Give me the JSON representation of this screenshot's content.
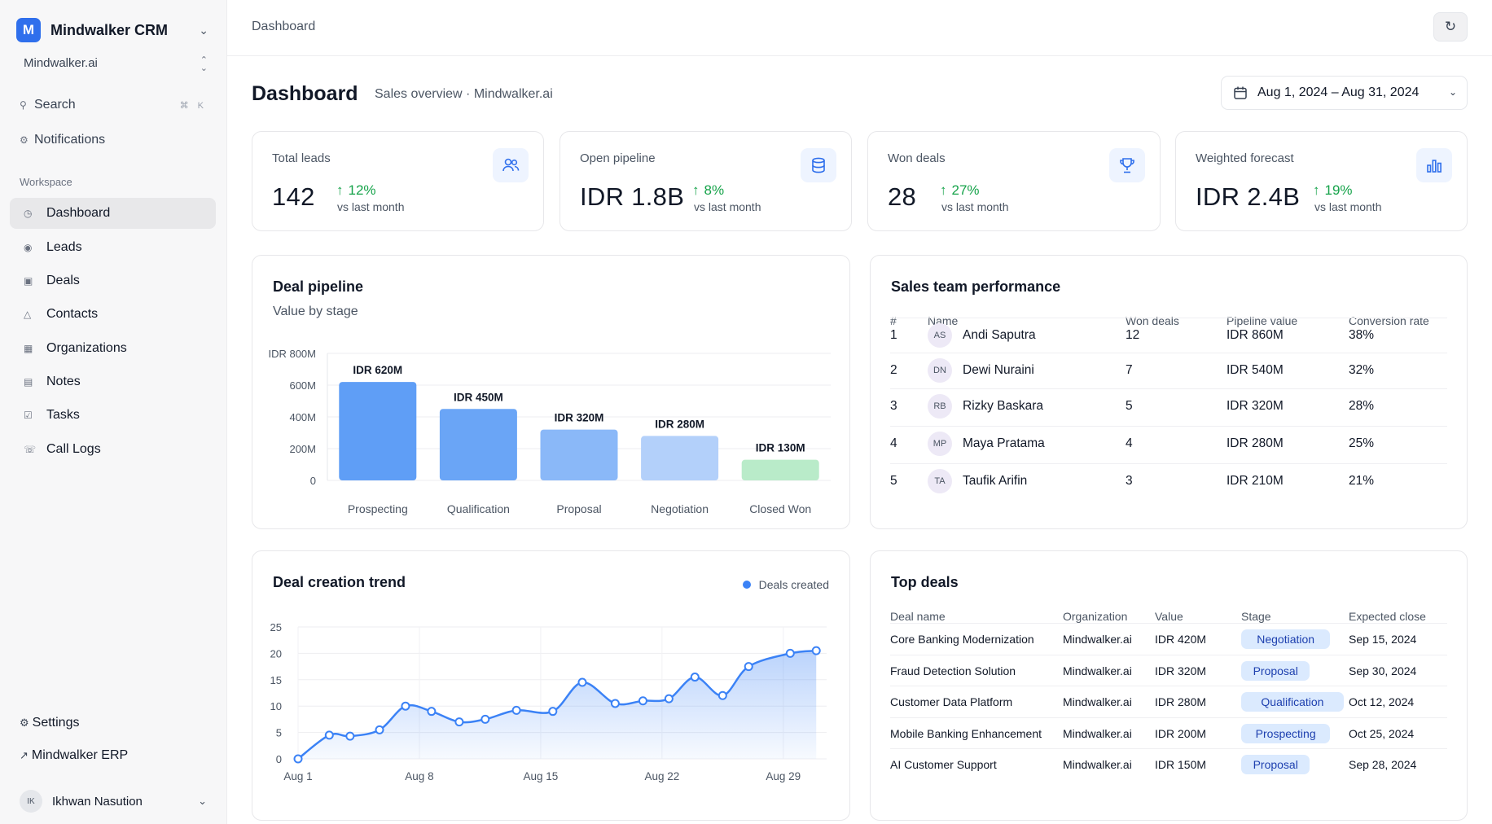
{
  "app": {
    "name": "Mindwalker CRM",
    "logo_letter": "M",
    "org": "Mindwalker.ai"
  },
  "sidebar": {
    "search_label": "Search",
    "search_shortcut": "⌘ K",
    "notifications_label": "Notifications",
    "section_label": "Workspace",
    "items": [
      {
        "label": "Dashboard",
        "icon": "clock-icon",
        "active": true
      },
      {
        "label": "Leads",
        "icon": "target-icon"
      },
      {
        "label": "Deals",
        "icon": "briefcase-icon"
      },
      {
        "label": "Contacts",
        "icon": "person-icon"
      },
      {
        "label": "Organizations",
        "icon": "building-icon"
      },
      {
        "label": "Notes",
        "icon": "note-icon"
      },
      {
        "label": "Tasks",
        "icon": "checkbox-icon"
      },
      {
        "label": "Call Logs",
        "icon": "phone-icon"
      }
    ],
    "settings_label": "Settings",
    "erp_label": "Mindwalker ERP",
    "user": {
      "initials": "IK",
      "name": "Ikhwan Nasution"
    }
  },
  "header": {
    "breadcrumb": "Dashboard",
    "title": "Dashboard",
    "subtitle": "Sales overview · Mindwalker.ai",
    "date_range": "Aug 1, 2024 – Aug 31, 2024"
  },
  "kpis": [
    {
      "label": "Total leads",
      "value": "142",
      "delta": "12%",
      "compare": "vs last month",
      "icon": "users-icon"
    },
    {
      "label": "Open pipeline",
      "value": "IDR 1.8B",
      "delta": "8%",
      "compare": "vs last month",
      "icon": "database-icon"
    },
    {
      "label": "Won deals",
      "value": "28",
      "delta": "27%",
      "compare": "vs last month",
      "icon": "trophy-icon"
    },
    {
      "label": "Weighted forecast",
      "value": "IDR 2.4B",
      "delta": "19%",
      "compare": "vs last month",
      "icon": "bar-chart-icon"
    }
  ],
  "colors": {
    "accent": "#2f6fec",
    "positive": "#16a34a",
    "line": "#3b82f6",
    "badge_bg": "#dbeafe",
    "badge_text": "#1e40af"
  },
  "pipeline_card": {
    "title": "Deal pipeline",
    "subtitle": "Value by stage"
  },
  "trend_card": {
    "title": "Deal creation trend"
  },
  "chart_data": [
    {
      "type": "bar",
      "categories": [
        "Prospecting",
        "Qualification",
        "Proposal",
        "Negotiation",
        "Closed Won"
      ],
      "values": [
        620,
        450,
        320,
        280,
        130
      ],
      "value_labels": [
        "IDR 620M",
        "IDR 450M",
        "IDR 320M",
        "IDR 280M",
        "IDR 130M"
      ],
      "colors": [
        "#5f9ef6",
        "#6aa5f6",
        "#8ab8f8",
        "#b3d0fa",
        "#b9ebc9"
      ],
      "yticks": [
        "0",
        "200M",
        "400M",
        "600M",
        "IDR 800M"
      ],
      "ytick_values": [
        0,
        200,
        400,
        600,
        800
      ],
      "ylim": [
        0,
        800
      ],
      "grid": true
    },
    {
      "type": "area",
      "series": [
        {
          "name": "Deals created",
          "values": [
            0,
            4.5,
            4.3,
            5.5,
            10,
            9,
            7,
            7.5,
            9.2,
            9,
            14.5,
            10.5,
            11,
            11.4,
            15.5,
            12,
            17.5,
            20,
            20.5
          ]
        }
      ],
      "x": [
        1,
        2.8,
        4,
        5.7,
        7.2,
        8.7,
        10.3,
        11.8,
        13.6,
        15.7,
        17.4,
        19.3,
        20.9,
        22.4,
        23.9,
        25.5,
        27,
        29.4,
        30.9
      ],
      "xticks": [
        "Aug 1",
        "Aug 8",
        "Aug 15",
        "Aug 22",
        "Aug 29"
      ],
      "xtick_values": [
        1,
        8,
        15,
        22,
        29
      ],
      "yticks": [
        "0",
        "5",
        "10",
        "15",
        "20",
        "25"
      ],
      "ylim": [
        0,
        25
      ],
      "xlim": [
        1,
        31.5
      ],
      "legend": "top-right",
      "grid": true
    }
  ],
  "team": {
    "title": "Sales team performance",
    "headers": [
      "#",
      "Name",
      "Won deals",
      "Pipeline value",
      "Conversion rate"
    ],
    "rows": [
      {
        "rank": "1",
        "initials": "AS",
        "name": "Andi Saputra",
        "won": "12",
        "pipeline": "IDR 860M",
        "conv": "38%"
      },
      {
        "rank": "2",
        "initials": "DN",
        "name": "Dewi Nuraini",
        "won": "7",
        "pipeline": "IDR 540M",
        "conv": "32%"
      },
      {
        "rank": "3",
        "initials": "RB",
        "name": "Rizky Baskara",
        "won": "5",
        "pipeline": "IDR 320M",
        "conv": "28%"
      },
      {
        "rank": "4",
        "initials": "MP",
        "name": "Maya Pratama",
        "won": "4",
        "pipeline": "IDR 280M",
        "conv": "25%"
      },
      {
        "rank": "5",
        "initials": "TA",
        "name": "Taufik Arifin",
        "won": "3",
        "pipeline": "IDR 210M",
        "conv": "21%"
      }
    ]
  },
  "top_deals": {
    "title": "Top deals",
    "headers": [
      "Deal name",
      "Organization",
      "Value",
      "Stage",
      "Expected close"
    ],
    "rows": [
      {
        "name": "Core Banking Modernization",
        "org": "Mindwalker.ai",
        "value": "IDR 420M",
        "stage": "Negotiation",
        "close": "Sep 15, 2024"
      },
      {
        "name": "Fraud Detection Solution",
        "org": "Mindwalker.ai",
        "value": "IDR 320M",
        "stage": "Proposal",
        "close": "Sep 30, 2024"
      },
      {
        "name": "Customer Data Platform",
        "org": "Mindwalker.ai",
        "value": "IDR 280M",
        "stage": "Qualification",
        "close": "Oct 12, 2024"
      },
      {
        "name": "Mobile Banking Enhancement",
        "org": "Mindwalker.ai",
        "value": "IDR 200M",
        "stage": "Prospecting",
        "close": "Oct 25, 2024"
      },
      {
        "name": "AI Customer Support",
        "org": "Mindwalker.ai",
        "value": "IDR 150M",
        "stage": "Proposal",
        "close": "Sep 28, 2024"
      }
    ]
  }
}
